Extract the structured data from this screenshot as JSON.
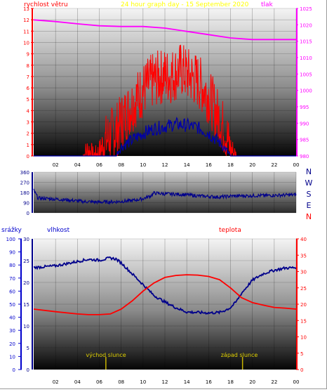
{
  "header": {
    "wind_label": "rychlost větru",
    "title": "24 hour graph day - 15 September 2020",
    "pressure_label": "tlak"
  },
  "colors": {
    "wind": "#ff0000",
    "gust": "#0000aa",
    "pressure": "#ff00ff",
    "direction": "#00008b",
    "humidity": "#00008b",
    "temperature": "#ff0000",
    "rain_axis": "#0000cc",
    "sun_marker": "#c8b400",
    "title_color": "#ffff00",
    "left_axis": "#ff0000"
  },
  "compass": [
    "N",
    "W",
    "S",
    "E",
    "N"
  ],
  "bottom_labels": {
    "rain": "srážky",
    "humidity": "vlhkost",
    "temperature": "teplota",
    "sunrise": "východ slunce",
    "sunset": "západ slunce"
  },
  "chart_data": [
    {
      "type": "line",
      "panel": "wind-pressure",
      "x_ticks": [
        "02",
        "04",
        "06",
        "08",
        "10",
        "12",
        "14",
        "16",
        "18",
        "20",
        "22",
        "00"
      ],
      "y_left_ticks": [
        0,
        1,
        2,
        3,
        4,
        5,
        6,
        7,
        8,
        9,
        10,
        11,
        12,
        13
      ],
      "y_left_lim": [
        0,
        13
      ],
      "y_right_ticks": [
        980,
        985,
        990,
        995,
        1000,
        1005,
        1010,
        1015,
        1020,
        1025
      ],
      "y_right_lim": [
        980,
        1025
      ],
      "series": [
        {
          "key": "wind",
          "axis": "left",
          "points": [
            [
              0,
              0
            ],
            [
              4.5,
              0
            ],
            [
              5,
              0.5
            ],
            [
              5.5,
              0
            ],
            [
              6,
              0.3
            ],
            [
              6.5,
              1.2
            ],
            [
              7,
              1.8
            ],
            [
              7.5,
              2.2
            ],
            [
              8,
              3
            ],
            [
              8.5,
              3.8
            ],
            [
              9,
              4.5
            ],
            [
              9.5,
              5.2
            ],
            [
              10,
              5.8
            ],
            [
              10.5,
              6.3
            ],
            [
              11,
              6.7
            ],
            [
              11.5,
              6.9
            ],
            [
              12,
              7.1
            ],
            [
              12.5,
              7
            ],
            [
              13,
              7.3
            ],
            [
              13.5,
              7.6
            ],
            [
              14,
              7.2
            ],
            [
              14.5,
              6.9
            ],
            [
              15,
              6.6
            ],
            [
              15.5,
              6
            ],
            [
              16,
              5.3
            ],
            [
              16.5,
              4.3
            ],
            [
              17,
              3.2
            ],
            [
              17.5,
              2.2
            ],
            [
              18,
              0.6
            ],
            [
              18.5,
              0
            ],
            [
              24,
              0
            ]
          ]
        },
        {
          "key": "gust",
          "axis": "left",
          "points": [
            [
              0,
              0
            ],
            [
              7.5,
              0
            ],
            [
              8,
              0.8
            ],
            [
              9,
              1.4
            ],
            [
              10,
              2
            ],
            [
              11,
              2.4
            ],
            [
              12,
              2.6
            ],
            [
              13,
              2.8
            ],
            [
              14,
              2.7
            ],
            [
              15,
              2.5
            ],
            [
              16,
              2
            ],
            [
              17,
              1.2
            ],
            [
              17.8,
              0.3
            ],
            [
              18,
              0
            ],
            [
              24,
              0
            ]
          ]
        },
        {
          "key": "pressure",
          "axis": "right",
          "points": [
            [
              0,
              1021.5
            ],
            [
              2,
              1021
            ],
            [
              4,
              1020.3
            ],
            [
              6,
              1019.7
            ],
            [
              8,
              1019.5
            ],
            [
              10,
              1019.5
            ],
            [
              12,
              1019
            ],
            [
              14,
              1018
            ],
            [
              16,
              1017
            ],
            [
              18,
              1016
            ],
            [
              20,
              1015.5
            ],
            [
              22,
              1015.5
            ],
            [
              24,
              1015.5
            ]
          ]
        }
      ]
    },
    {
      "type": "line",
      "panel": "wind-direction",
      "y_ticks": [
        0,
        90,
        180,
        270,
        360
      ],
      "y_lim": [
        0,
        360
      ],
      "series": [
        {
          "key": "direction",
          "points": [
            [
              0,
              200
            ],
            [
              0.4,
              130
            ],
            [
              1.5,
              125
            ],
            [
              3,
              115
            ],
            [
              4.5,
              100
            ],
            [
              6,
              95
            ],
            [
              7.5,
              98
            ],
            [
              9,
              108
            ],
            [
              10,
              125
            ],
            [
              10.7,
              150
            ],
            [
              11,
              175
            ],
            [
              12,
              168
            ],
            [
              13,
              165
            ],
            [
              14,
              160
            ],
            [
              15,
              150
            ],
            [
              16,
              145
            ],
            [
              17,
              140
            ],
            [
              18,
              148
            ],
            [
              19,
              150
            ],
            [
              20,
              152
            ],
            [
              22,
              155
            ],
            [
              24,
              160
            ]
          ]
        }
      ]
    },
    {
      "type": "line",
      "panel": "humidity-temperature",
      "y_rain_ticks": [
        0,
        10,
        20,
        30,
        40,
        50,
        60,
        70,
        80,
        90,
        100
      ],
      "y_rain_lim": [
        0,
        100
      ],
      "y_humidity_ticks": [
        0,
        5,
        10,
        15,
        20,
        25,
        30
      ],
      "y_humidity_lim": [
        0,
        30
      ],
      "y_temperature_ticks": [
        0,
        5,
        10,
        15,
        20,
        25,
        30,
        35,
        40
      ],
      "y_temperature_lim": [
        0,
        40
      ],
      "sunrise_hour": 6.6,
      "sunset_hour": 19.1,
      "series": [
        {
          "key": "humidity",
          "axis": "humidity",
          "points": [
            [
              0,
              23.4
            ],
            [
              2,
              23.8
            ],
            [
              4,
              24.8
            ],
            [
              5,
              25.3
            ],
            [
              6,
              25.1
            ],
            [
              7,
              25.6
            ],
            [
              7.5,
              25.4
            ],
            [
              8,
              24.5
            ],
            [
              9,
              22
            ],
            [
              10,
              19.5
            ],
            [
              11,
              17
            ],
            [
              12,
              15.5
            ],
            [
              13,
              14.2
            ],
            [
              14,
              13.2
            ],
            [
              15,
              13.1
            ],
            [
              16,
              13
            ],
            [
              17,
              13.1
            ],
            [
              17.5,
              13.6
            ],
            [
              18,
              14.2
            ],
            [
              18.5,
              15.5
            ],
            [
              19,
              17.5
            ],
            [
              20,
              20.5
            ],
            [
              21,
              22
            ],
            [
              22,
              22.8
            ],
            [
              23,
              23.3
            ],
            [
              24,
              23.4
            ]
          ]
        },
        {
          "key": "temperature",
          "axis": "temperature",
          "points": [
            [
              0,
              18.5
            ],
            [
              2,
              17.7
            ],
            [
              4,
              17
            ],
            [
              5,
              16.8
            ],
            [
              6,
              16.8
            ],
            [
              7,
              17
            ],
            [
              8,
              18.5
            ],
            [
              9,
              21
            ],
            [
              10,
              24
            ],
            [
              11,
              26.5
            ],
            [
              12,
              28.2
            ],
            [
              13,
              28.8
            ],
            [
              14,
              29
            ],
            [
              15,
              28.9
            ],
            [
              16,
              28.5
            ],
            [
              17,
              27.5
            ],
            [
              18,
              25
            ],
            [
              19,
              22
            ],
            [
              20,
              20.5
            ],
            [
              21,
              19.7
            ],
            [
              22,
              19
            ],
            [
              23,
              18.8
            ],
            [
              24,
              18.5
            ]
          ]
        }
      ]
    }
  ]
}
